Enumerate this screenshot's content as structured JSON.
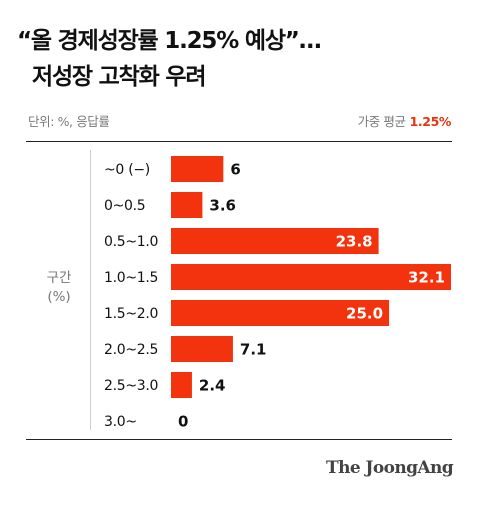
{
  "header": {
    "title_line1": "“올 경제성장률 1.25% 예상”…",
    "title_line2": "저성장 고착화 우려",
    "unit_note": "단위: %, 응답률",
    "average_label": "가중 평균",
    "average_value": "1.25%"
  },
  "axis": {
    "label_line1": "구간",
    "label_line2": "(%)"
  },
  "colors": {
    "bar": "#f2330d",
    "accent_text": "#e8330e"
  },
  "chart_data": {
    "type": "bar",
    "orientation": "horizontal",
    "categories": [
      "~0 (−)",
      "0~0.5",
      "0.5~1.0",
      "1.0~1.5",
      "1.5~2.0",
      "2.0~2.5",
      "2.5~3.0",
      "3.0~"
    ],
    "values": [
      6,
      3.6,
      23.8,
      32.1,
      25.0,
      7.1,
      2.4,
      0
    ],
    "value_labels": [
      "6",
      "3.6",
      "23.8",
      "32.1",
      "25.0",
      "7.1",
      "2.4",
      "0"
    ],
    "xlim": [
      0,
      32.1
    ],
    "ylabel": "구간 (%)",
    "grid": false,
    "legend": "none"
  },
  "footer": {
    "source_logo": "The JoongAng"
  }
}
